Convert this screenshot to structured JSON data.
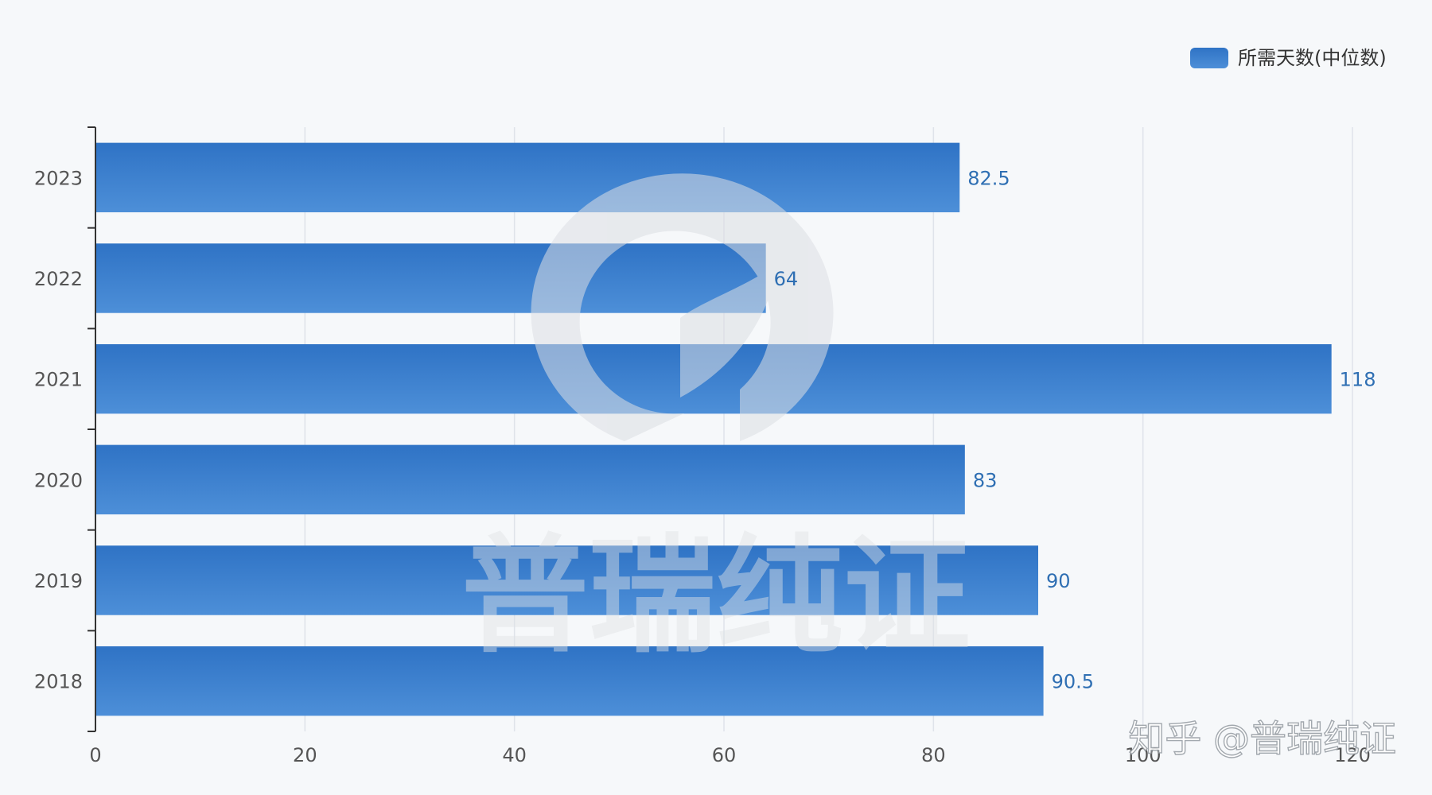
{
  "chart_data": {
    "type": "bar",
    "orientation": "horizontal",
    "categories": [
      "2023",
      "2022",
      "2021",
      "2020",
      "2019",
      "2018"
    ],
    "series": [
      {
        "name": "所需天数(中位数)",
        "values": [
          82.5,
          64,
          118,
          83,
          90,
          90.5
        ]
      }
    ],
    "value_labels": [
      "82.5",
      "64",
      "118",
      "83",
      "90",
      "90.5"
    ],
    "x_ticks": [
      "0",
      "20",
      "40",
      "60",
      "80",
      "100",
      "120"
    ],
    "xlim": [
      0,
      120
    ],
    "grid": "vertical",
    "legend_position": "top-right"
  },
  "colors": {
    "bar_top": "#2f73c5",
    "bar_bottom": "#4d8fd8",
    "value_label": "#2f6fb3",
    "grid": "#dfe3ea",
    "axis": "#333333",
    "background": "#f6f8fa"
  },
  "watermark": {
    "center_text": "普瑞纯证",
    "footer_text": "知乎 @普瑞纯证"
  }
}
